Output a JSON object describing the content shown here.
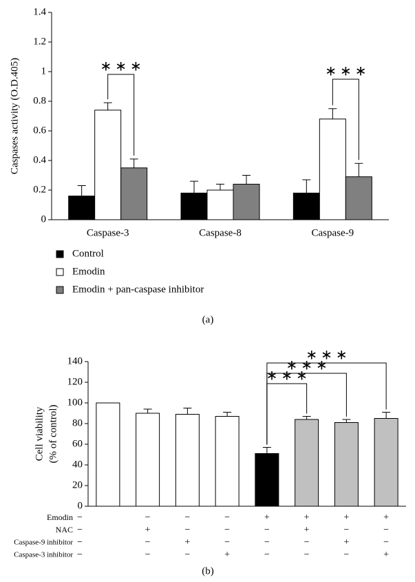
{
  "chart_data": [
    {
      "type": "bar",
      "ylabel": "Caspases activity (O.D.405)",
      "caption": "(a)",
      "categories": [
        "Caspase-3",
        "Caspase-8",
        "Caspase-9"
      ],
      "series": [
        {
          "name": "Control",
          "color": "#000000",
          "values": [
            0.16,
            0.18,
            0.18
          ],
          "errors": [
            0.07,
            0.08,
            0.09
          ]
        },
        {
          "name": "Emodin",
          "color": "#ffffff",
          "values": [
            0.74,
            0.2,
            0.68
          ],
          "errors": [
            0.05,
            0.04,
            0.07
          ]
        },
        {
          "name": "Emodin + pan-caspase inhibitor",
          "color": "#808080",
          "values": [
            0.35,
            0.24,
            0.29
          ],
          "errors": [
            0.06,
            0.06,
            0.09
          ]
        }
      ],
      "ylim": [
        0,
        1.4
      ],
      "yticks": [
        0,
        0.2,
        0.4,
        0.6,
        0.8,
        1,
        1.2,
        1.4
      ],
      "annotations": [
        "∗ ∗ ∗",
        "∗ ∗ ∗"
      ]
    },
    {
      "type": "bar",
      "ylabel": [
        "Cell viability",
        "(% of control)"
      ],
      "caption": "(b)",
      "values": [
        100,
        90,
        89,
        87,
        51,
        84,
        81,
        85
      ],
      "errors": [
        0,
        4,
        6,
        4,
        6,
        3,
        3,
        6
      ],
      "colors": [
        "#ffffff",
        "#ffffff",
        "#ffffff",
        "#ffffff",
        "#000000",
        "#c0c0c0",
        "#c0c0c0",
        "#c0c0c0"
      ],
      "ylim": [
        0,
        140
      ],
      "yticks": [
        0,
        20,
        40,
        60,
        80,
        100,
        120,
        140
      ],
      "treatments": [
        {
          "label": "Emodin",
          "signs": [
            "−",
            "−",
            "−",
            "−",
            "+",
            "+",
            "+",
            "+"
          ]
        },
        {
          "label": "NAC",
          "signs": [
            "−",
            "+",
            "−",
            "−",
            "−",
            "+",
            "−",
            "−"
          ]
        },
        {
          "label": "Caspase-9 inhibitor",
          "signs": [
            "−",
            "−",
            "+",
            "−",
            "−",
            "−",
            "+",
            "−"
          ]
        },
        {
          "label": "Caspase-3 inhibitor",
          "signs": [
            "−",
            "−",
            "−",
            "+",
            "−",
            "−",
            "−",
            "+"
          ]
        }
      ],
      "annotations": [
        "∗ ∗ ∗",
        "∗ ∗ ∗",
        "∗ ∗ ∗"
      ]
    }
  ]
}
